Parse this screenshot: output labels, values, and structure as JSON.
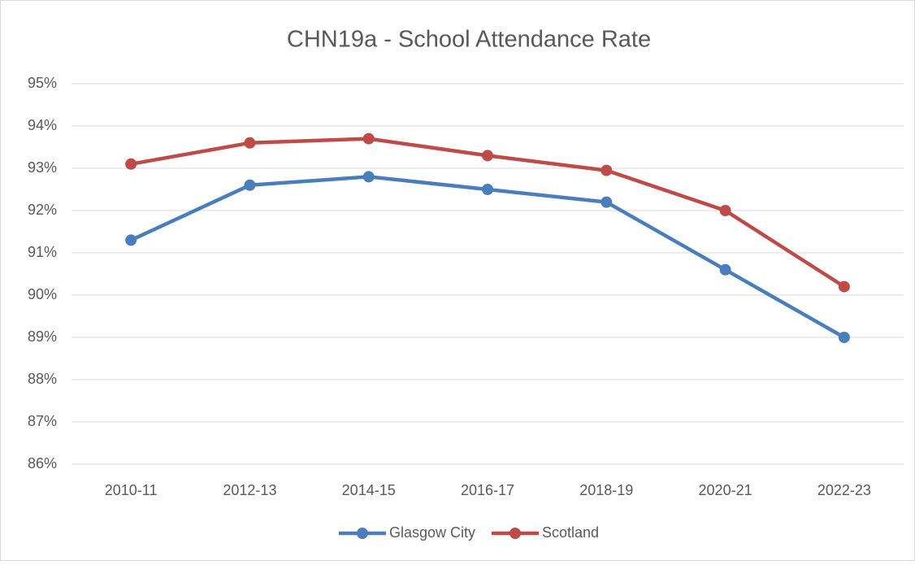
{
  "chart_data": {
    "type": "line",
    "title": "CHN19a - School Attendance Rate",
    "categories": [
      "2010-11",
      "2012-13",
      "2014-15",
      "2016-17",
      "2018-19",
      "2020-21",
      "2022-23"
    ],
    "series": [
      {
        "name": "Glasgow City",
        "color": "#4a7ebb",
        "values": [
          91.3,
          92.6,
          92.8,
          92.5,
          92.2,
          90.6,
          89.0
        ]
      },
      {
        "name": "Scotland",
        "color": "#be4b48",
        "values": [
          93.1,
          93.6,
          93.7,
          93.3,
          92.95,
          92.0,
          90.2
        ]
      }
    ],
    "ylim": [
      86,
      95
    ],
    "yticks": [
      {
        "value": 86,
        "label": "86%"
      },
      {
        "value": 87,
        "label": "87%"
      },
      {
        "value": 88,
        "label": "88%"
      },
      {
        "value": 89,
        "label": "89%"
      },
      {
        "value": 90,
        "label": "90%"
      },
      {
        "value": 91,
        "label": "91%"
      },
      {
        "value": 92,
        "label": "92%"
      },
      {
        "value": 93,
        "label": "93%"
      },
      {
        "value": 94,
        "label": "94%"
      },
      {
        "value": 95,
        "label": "95%"
      }
    ],
    "grid": true,
    "legend": "bottom"
  }
}
